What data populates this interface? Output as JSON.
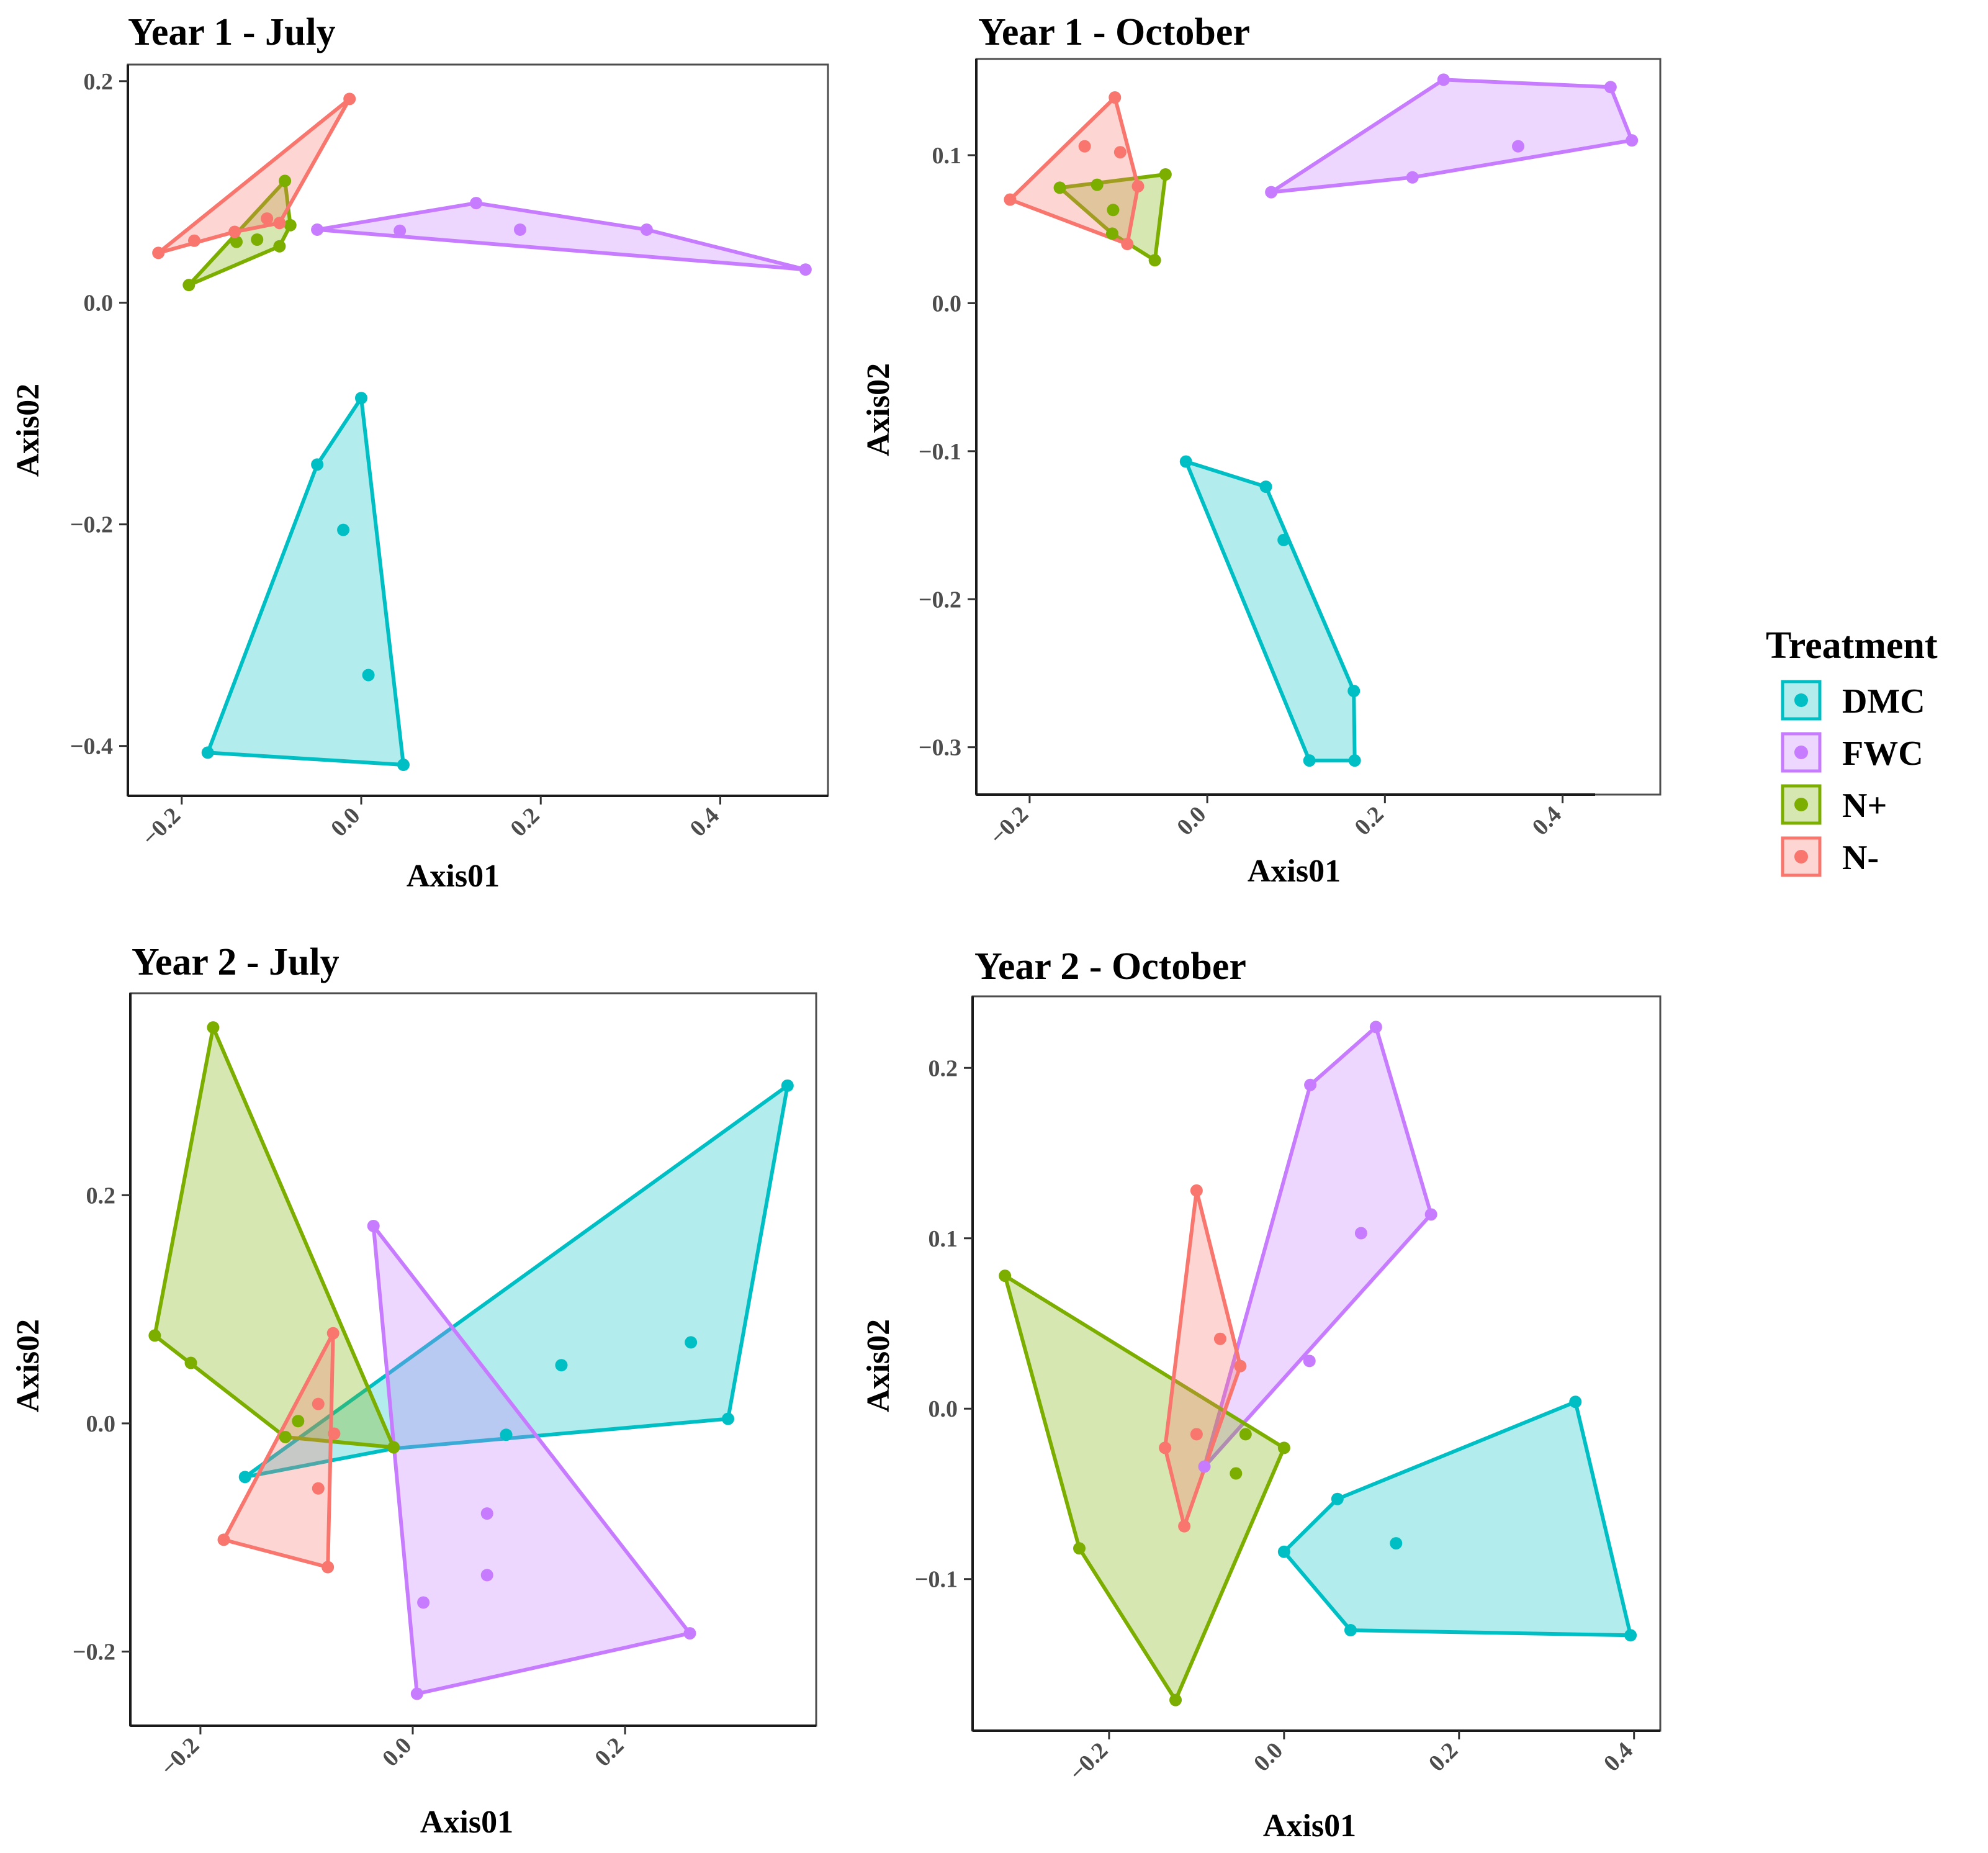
{
  "legend": {
    "title": "Treatment",
    "items": [
      {
        "label": "DMC",
        "color": "#00BFC4"
      },
      {
        "label": "FWC",
        "color": "#C77CFF"
      },
      {
        "label": "N+",
        "color": "#7CAE00"
      },
      {
        "label": "N-",
        "color": "#F8766D"
      }
    ]
  },
  "chart_data": [
    {
      "type": "scatter",
      "title": "Year 1 - July",
      "xlabel": "Axis01",
      "ylabel": "Axis02",
      "xlim": [
        -0.26,
        0.52
      ],
      "ylim": [
        -0.445,
        0.215
      ],
      "xticks": [
        -0.2,
        0.0,
        0.2,
        0.4
      ],
      "xtick_labels": [
        "−0.2",
        "0.0",
        "0.2",
        "0.4"
      ],
      "yticks": [
        -0.4,
        -0.2,
        0.0,
        0.2
      ],
      "ytick_labels": [
        "−0.4",
        "−0.2",
        "0.0",
        "0.2"
      ],
      "series": [
        {
          "name": "DMC",
          "hull": [
            [
              0.0,
              -0.086
            ],
            [
              0.047,
              -0.417
            ],
            [
              -0.171,
              -0.406
            ],
            [
              -0.049,
              -0.146
            ]
          ],
          "points": [
            [
              0.0,
              -0.086
            ],
            [
              -0.049,
              -0.146
            ],
            [
              -0.02,
              -0.205
            ],
            [
              0.008,
              -0.336
            ],
            [
              0.047,
              -0.417
            ],
            [
              -0.171,
              -0.406
            ]
          ]
        },
        {
          "name": "FWC",
          "hull": [
            [
              -0.049,
              0.066
            ],
            [
              0.128,
              0.09
            ],
            [
              0.318,
              0.066
            ],
            [
              0.495,
              0.03
            ]
          ],
          "points": [
            [
              -0.049,
              0.066
            ],
            [
              0.043,
              0.065
            ],
            [
              0.128,
              0.09
            ],
            [
              0.177,
              0.066
            ],
            [
              0.318,
              0.066
            ],
            [
              0.495,
              0.03
            ]
          ]
        },
        {
          "name": "N+",
          "hull": [
            [
              -0.192,
              0.016
            ],
            [
              -0.085,
              0.11
            ],
            [
              -0.079,
              0.07
            ],
            [
              -0.091,
              0.051
            ]
          ],
          "points": [
            [
              -0.192,
              0.016
            ],
            [
              -0.085,
              0.11
            ],
            [
              -0.079,
              0.07
            ],
            [
              -0.091,
              0.051
            ],
            [
              -0.116,
              0.057
            ],
            [
              -0.139,
              0.055
            ]
          ]
        },
        {
          "name": "N-",
          "hull": [
            [
              -0.226,
              0.045
            ],
            [
              -0.013,
              0.184
            ],
            [
              -0.091,
              0.072
            ],
            [
              -0.141,
              0.064
            ]
          ],
          "points": [
            [
              -0.226,
              0.045
            ],
            [
              -0.013,
              0.184
            ],
            [
              -0.186,
              0.056
            ],
            [
              -0.141,
              0.064
            ],
            [
              -0.105,
              0.076
            ],
            [
              -0.091,
              0.072
            ]
          ]
        }
      ]
    },
    {
      "type": "scatter",
      "title": "Year 1 - October",
      "xlabel": "Axis01",
      "ylabel": "Axis02",
      "xlim": [
        -0.26,
        0.51
      ],
      "ylim": [
        -0.332,
        0.165
      ],
      "xticks": [
        -0.2,
        0.0,
        0.2,
        0.4
      ],
      "xtick_labels": [
        "−0.2",
        "0.0",
        "0.2",
        "0.4"
      ],
      "yticks": [
        -0.3,
        -0.2,
        -0.1,
        0.0,
        0.1
      ],
      "ytick_labels": [
        "−0.3",
        "−0.2",
        "−0.1",
        "0.0",
        "0.1"
      ],
      "series": [
        {
          "name": "DMC",
          "hull": [
            [
              -0.024,
              -0.107
            ],
            [
              0.066,
              -0.124
            ],
            [
              0.165,
              -0.262
            ],
            [
              0.166,
              -0.309
            ],
            [
              0.115,
              -0.309
            ]
          ],
          "points": [
            [
              -0.024,
              -0.107
            ],
            [
              0.066,
              -0.124
            ],
            [
              0.086,
              -0.16
            ],
            [
              0.165,
              -0.262
            ],
            [
              0.166,
              -0.309
            ],
            [
              0.115,
              -0.309
            ]
          ]
        },
        {
          "name": "FWC",
          "hull": [
            [
              0.072,
              0.075
            ],
            [
              0.266,
              0.151
            ],
            [
              0.454,
              0.146
            ],
            [
              0.478,
              0.11
            ],
            [
              0.231,
              0.085
            ]
          ],
          "points": [
            [
              0.072,
              0.075
            ],
            [
              0.266,
              0.151
            ],
            [
              0.454,
              0.146
            ],
            [
              0.478,
              0.11
            ],
            [
              0.35,
              0.106
            ],
            [
              0.231,
              0.085
            ]
          ]
        },
        {
          "name": "N+",
          "hull": [
            [
              -0.166,
              0.078
            ],
            [
              -0.047,
              0.087
            ],
            [
              -0.059,
              0.029
            ],
            [
              -0.107,
              0.047
            ]
          ],
          "points": [
            [
              -0.166,
              0.078
            ],
            [
              -0.124,
              0.08
            ],
            [
              -0.047,
              0.087
            ],
            [
              -0.106,
              0.063
            ],
            [
              -0.107,
              0.047
            ],
            [
              -0.059,
              0.029
            ]
          ]
        },
        {
          "name": "N-",
          "hull": [
            [
              -0.222,
              0.07
            ],
            [
              -0.104,
              0.139
            ],
            [
              -0.078,
              0.079
            ],
            [
              -0.09,
              0.04
            ]
          ],
          "points": [
            [
              -0.222,
              0.07
            ],
            [
              -0.104,
              0.139
            ],
            [
              -0.138,
              0.106
            ],
            [
              -0.098,
              0.102
            ],
            [
              -0.078,
              0.079
            ],
            [
              -0.09,
              0.04
            ]
          ]
        }
      ]
    },
    {
      "type": "scatter",
      "title": "Year 2 - July",
      "xlabel": "Axis01",
      "ylabel": "Axis02",
      "xlim": [
        -0.266,
        0.38
      ],
      "ylim": [
        -0.265,
        0.377
      ],
      "xticks": [
        -0.2,
        0.0,
        0.2
      ],
      "xtick_labels": [
        "−0.2",
        "0.0",
        "0.2"
      ],
      "yticks": [
        -0.2,
        0.0,
        0.2
      ],
      "ytick_labels": [
        "−0.2",
        "0.0",
        "0.2"
      ],
      "series": [
        {
          "name": "DMC",
          "hull": [
            [
              -0.158,
              -0.047
            ],
            [
              0.353,
              0.296
            ],
            [
              0.297,
              0.004
            ],
            [
              -0.018,
              -0.022
            ]
          ],
          "points": [
            [
              -0.158,
              -0.047
            ],
            [
              0.088,
              -0.01
            ],
            [
              0.14,
              0.051
            ],
            [
              0.262,
              0.071
            ],
            [
              0.297,
              0.004
            ],
            [
              0.353,
              0.296
            ]
          ]
        },
        {
          "name": "FWC",
          "hull": [
            [
              -0.037,
              0.173
            ],
            [
              0.261,
              -0.184
            ],
            [
              0.004,
              -0.237
            ]
          ],
          "points": [
            [
              -0.037,
              0.173
            ],
            [
              0.07,
              -0.079
            ],
            [
              0.07,
              -0.133
            ],
            [
              0.01,
              -0.157
            ],
            [
              0.004,
              -0.237
            ],
            [
              0.261,
              -0.184
            ]
          ]
        },
        {
          "name": "N+",
          "hull": [
            [
              -0.243,
              0.077
            ],
            [
              -0.188,
              0.347
            ],
            [
              -0.018,
              -0.021
            ],
            [
              -0.12,
              -0.012
            ]
          ],
          "points": [
            [
              -0.243,
              0.077
            ],
            [
              -0.188,
              0.347
            ],
            [
              -0.209,
              0.053
            ],
            [
              -0.108,
              0.002
            ],
            [
              -0.12,
              -0.012
            ],
            [
              -0.018,
              -0.021
            ]
          ]
        },
        {
          "name": "N-",
          "hull": [
            [
              -0.178,
              -0.102
            ],
            [
              -0.075,
              0.079
            ],
            [
              -0.08,
              -0.126
            ]
          ],
          "points": [
            [
              -0.178,
              -0.102
            ],
            [
              -0.075,
              0.079
            ],
            [
              -0.089,
              0.017
            ],
            [
              -0.074,
              -0.009
            ],
            [
              -0.089,
              -0.057
            ],
            [
              -0.08,
              -0.126
            ]
          ]
        }
      ]
    },
    {
      "type": "scatter",
      "title": "Year 2 - October",
      "xlabel": "Axis01",
      "ylabel": "Axis02",
      "xlim": [
        -0.356,
        0.43
      ],
      "ylim": [
        -0.189,
        0.242
      ],
      "xticks": [
        -0.2,
        0.0,
        0.2,
        0.4
      ],
      "xtick_labels": [
        "−0.2",
        "0.0",
        "0.2",
        "0.4"
      ],
      "yticks": [
        -0.1,
        0.0,
        0.1,
        0.2
      ],
      "ytick_labels": [
        "−0.1",
        "0.0",
        "0.1",
        "0.2"
      ],
      "series": [
        {
          "name": "DMC",
          "hull": [
            [
              0.0,
              -0.084
            ],
            [
              0.061,
              -0.053
            ],
            [
              0.333,
              0.004
            ],
            [
              0.396,
              -0.133
            ],
            [
              0.076,
              -0.13
            ]
          ],
          "points": [
            [
              0.0,
              -0.084
            ],
            [
              0.061,
              -0.053
            ],
            [
              0.128,
              -0.079
            ],
            [
              0.333,
              0.004
            ],
            [
              0.396,
              -0.133
            ],
            [
              0.076,
              -0.13
            ]
          ]
        },
        {
          "name": "FWC",
          "hull": [
            [
              -0.091,
              -0.034
            ],
            [
              0.03,
              0.19
            ],
            [
              0.105,
              0.224
            ],
            [
              0.168,
              0.114
            ]
          ],
          "points": [
            [
              -0.091,
              -0.034
            ],
            [
              0.03,
              0.19
            ],
            [
              0.105,
              0.224
            ],
            [
              0.168,
              0.114
            ],
            [
              0.088,
              0.103
            ],
            [
              0.029,
              0.028
            ]
          ]
        },
        {
          "name": "N+",
          "hull": [
            [
              -0.319,
              0.078
            ],
            [
              -0.234,
              -0.082
            ],
            [
              -0.124,
              -0.171
            ],
            [
              0.0,
              -0.023
            ]
          ],
          "points": [
            [
              -0.319,
              0.078
            ],
            [
              -0.234,
              -0.082
            ],
            [
              -0.124,
              -0.171
            ],
            [
              0.0,
              -0.023
            ],
            [
              -0.055,
              -0.038
            ],
            [
              -0.044,
              -0.015
            ]
          ]
        },
        {
          "name": "N-",
          "hull": [
            [
              -0.136,
              -0.023
            ],
            [
              -0.1,
              0.128
            ],
            [
              -0.05,
              0.025
            ],
            [
              -0.114,
              -0.069
            ]
          ],
          "points": [
            [
              -0.136,
              -0.023
            ],
            [
              -0.1,
              0.128
            ],
            [
              -0.073,
              0.041
            ],
            [
              -0.05,
              0.025
            ],
            [
              -0.1,
              -0.015
            ],
            [
              -0.114,
              -0.069
            ]
          ]
        }
      ]
    }
  ]
}
